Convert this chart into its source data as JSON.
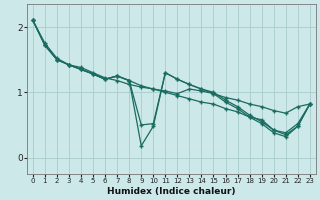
{
  "xlabel": "Humidex (Indice chaleur)",
  "bg_color": "#cce8e8",
  "line_color": "#1a6b60",
  "grid_color": "#aacccc",
  "xlim": [
    -0.5,
    23.5
  ],
  "ylim": [
    -0.25,
    2.35
  ],
  "yticks": [
    0,
    1,
    2
  ],
  "ytick_labels": [
    "0",
    "1",
    "2"
  ],
  "xticks": [
    0,
    1,
    2,
    3,
    4,
    5,
    6,
    7,
    8,
    9,
    10,
    11,
    12,
    13,
    14,
    15,
    16,
    17,
    18,
    19,
    20,
    21,
    22,
    23
  ],
  "series": [
    {
      "x": [
        0,
        1,
        2,
        3,
        4,
        5,
        6,
        7,
        8,
        9,
        10,
        11,
        12,
        13,
        14,
        15,
        16,
        17,
        18,
        19,
        20,
        21,
        22,
        23
      ],
      "y": [
        2.1,
        1.75,
        1.52,
        1.42,
        1.38,
        1.3,
        1.22,
        1.18,
        1.12,
        1.08,
        1.05,
        1.02,
        0.98,
        1.05,
        1.02,
        0.98,
        0.92,
        0.88,
        0.82,
        0.78,
        0.72,
        0.68,
        0.78,
        0.82
      ]
    },
    {
      "x": [
        0,
        1,
        2,
        3,
        4,
        5,
        6,
        7,
        8,
        9,
        10,
        11,
        12,
        13,
        14,
        15,
        16,
        17,
        18,
        19,
        20,
        21,
        22,
        23
      ],
      "y": [
        2.1,
        1.72,
        1.5,
        1.42,
        1.35,
        1.28,
        1.2,
        1.25,
        1.18,
        1.1,
        1.05,
        1.0,
        0.95,
        0.9,
        0.85,
        0.82,
        0.75,
        0.7,
        0.62,
        0.58,
        0.42,
        0.38,
        0.52,
        0.82
      ]
    },
    {
      "x": [
        0,
        1,
        2,
        3,
        4,
        5,
        6,
        7,
        8,
        9,
        10,
        11,
        12,
        13,
        14,
        15,
        16,
        17,
        18,
        19,
        20,
        21,
        22,
        23
      ],
      "y": [
        2.1,
        1.72,
        1.5,
        1.42,
        1.35,
        1.28,
        1.2,
        1.25,
        1.18,
        0.5,
        0.52,
        1.3,
        1.2,
        1.12,
        1.05,
        1.0,
        0.88,
        0.78,
        0.65,
        0.55,
        0.42,
        0.35,
        0.48,
        0.82
      ]
    },
    {
      "x": [
        0,
        1,
        2,
        3,
        4,
        5,
        6,
        7,
        8,
        9,
        10,
        11,
        12,
        13,
        14,
        15,
        16,
        17,
        18,
        19,
        20,
        21,
        22,
        23
      ],
      "y": [
        2.1,
        1.72,
        1.5,
        1.42,
        1.35,
        1.28,
        1.2,
        1.25,
        1.18,
        0.18,
        0.48,
        1.3,
        1.2,
        1.12,
        1.05,
        0.98,
        0.85,
        0.75,
        0.62,
        0.52,
        0.38,
        0.32,
        0.48,
        0.82
      ]
    }
  ]
}
